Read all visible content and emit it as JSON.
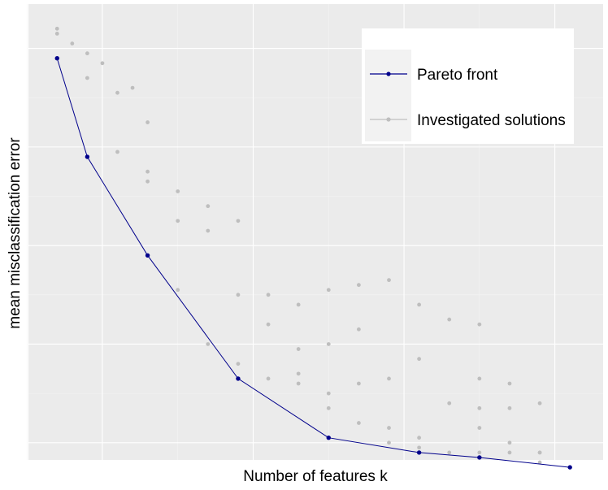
{
  "chart_data": {
    "type": "scatter",
    "title": "",
    "xlabel": "Number of features k",
    "ylabel": "mean misclassification error",
    "xlim": [
      0.1,
      38.2
    ],
    "ylim": [
      -0.035,
      0.89
    ],
    "grid": true,
    "legend_placement": "top-right",
    "colors": {
      "panel": "#ebebeb",
      "grid_major": "#ffffff",
      "grid_minor": "#f4f4f4",
      "pareto": "#00008b",
      "investigated": "#bebebe",
      "legend_bg": "#ffffff",
      "legend_key_bg": "#f2f2f2"
    },
    "series": [
      {
        "name": "Pareto front",
        "style": "line+points",
        "x": [
          2,
          4,
          8,
          14,
          20,
          26,
          30,
          36
        ],
        "y": [
          0.78,
          0.58,
          0.38,
          0.13,
          0.01,
          -0.02,
          -0.03,
          -0.05
        ]
      },
      {
        "name": "Investigated solutions",
        "style": "points",
        "x": [
          2,
          2,
          3,
          4,
          4,
          5,
          6,
          6,
          7,
          8,
          8,
          8,
          10,
          10,
          10,
          12,
          12,
          12,
          14,
          14,
          14,
          16,
          16,
          16,
          18,
          18,
          18,
          18,
          20,
          20,
          20,
          20,
          22,
          22,
          22,
          22,
          24,
          24,
          24,
          24,
          26,
          26,
          26,
          26,
          28,
          28,
          28,
          30,
          30,
          30,
          30,
          30,
          32,
          32,
          32,
          32,
          34,
          34,
          34,
          34
        ],
        "y": [
          0.84,
          0.83,
          0.81,
          0.79,
          0.74,
          0.77,
          0.71,
          0.59,
          0.72,
          0.65,
          0.55,
          0.53,
          0.51,
          0.45,
          0.31,
          0.48,
          0.43,
          0.2,
          0.45,
          0.3,
          0.16,
          0.3,
          0.24,
          0.13,
          0.28,
          0.19,
          0.14,
          0.12,
          0.31,
          0.2,
          0.1,
          0.07,
          0.32,
          0.23,
          0.04,
          0.12,
          0.33,
          0.13,
          0.03,
          0.0,
          0.28,
          0.17,
          0.01,
          -0.01,
          0.25,
          0.08,
          -0.02,
          0.24,
          0.07,
          -0.02,
          0.03,
          0.13,
          0.07,
          0.0,
          0.12,
          -0.02,
          0.08,
          -0.02,
          -0.04,
          -0.02
        ]
      }
    ]
  }
}
